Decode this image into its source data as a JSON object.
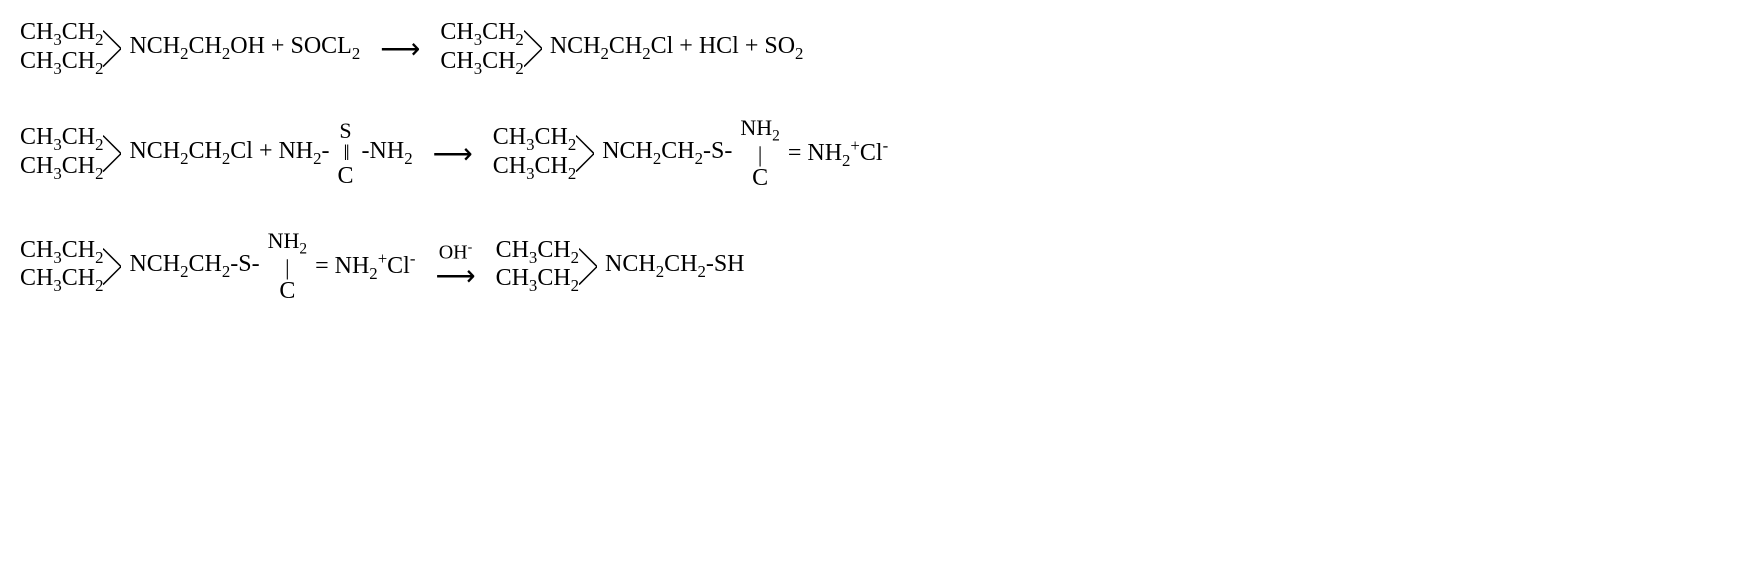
{
  "reactions": [
    {
      "left_branch_top": "CH₃CH₂",
      "left_branch_bot": "CH₃CH₂",
      "left_main": "NCH₂CH₂OH + SOCL₂",
      "arrow": "⟶",
      "arrow_label": "",
      "right_branch_top": "CH₃CH₂",
      "right_branch_bot": "CH₃CH₂",
      "right_main": "NCH₂CH₂Cl + HCl + SO₂",
      "right_stack_top": "",
      "right_stack_bot": "",
      "right_tail": ""
    },
    {
      "left_branch_top": "CH₃CH₂",
      "left_branch_bot": "CH₃CH₂",
      "left_main": "NCH₂CH₂Cl + NH₂-",
      "left_stack_top": "S",
      "left_stack_bond": "‖",
      "left_stack_bot": "C",
      "left_tail": "-NH₂",
      "arrow": "⟶",
      "arrow_label": "",
      "right_branch_top": "CH₃CH₂",
      "right_branch_bot": "CH₃CH₂",
      "right_main": "NCH₂CH₂-S-",
      "right_stack_top": "NH₂",
      "right_stack_bond": "|",
      "right_stack_bot": "C",
      "right_tail": "= NH₂⁺Cl⁻"
    },
    {
      "left_branch_top": "CH₃CH₂",
      "left_branch_bot": "CH₃CH₂",
      "left_main": "NCH₂CH₂-S-",
      "left_stack_top": "NH₂",
      "left_stack_bond": "|",
      "left_stack_bot": "C",
      "left_tail": "= NH₂⁺Cl⁻",
      "arrow": "⟶",
      "arrow_label": "OH⁻",
      "right_branch_top": "CH₃CH₂",
      "right_branch_bot": "CH₃CH₂",
      "right_main": "NCH₂CH₂-SH",
      "right_stack_top": "",
      "right_stack_bot": "",
      "right_tail": ""
    }
  ],
  "colors": {
    "text": "#000000",
    "bg": "#ffffff",
    "line": "#000000"
  },
  "font": {
    "family": "Times New Roman",
    "size": 24
  }
}
